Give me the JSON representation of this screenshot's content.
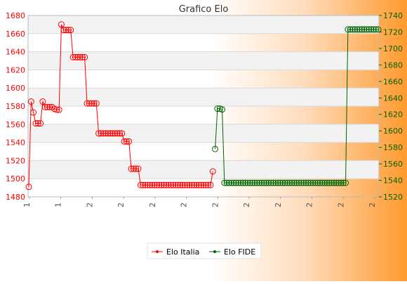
{
  "colors": {
    "italia": "#ff0000",
    "fide": "#006400",
    "band": "#f2f2f2",
    "grid": "#d9d9d9"
  },
  "chart_data": {
    "type": "line",
    "title": "Grafico Elo",
    "x_tick_labels": [
      "1",
      "1",
      "2",
      "2",
      "2",
      "2",
      "2",
      "2",
      "2",
      "2",
      "2",
      "2"
    ],
    "y_left": {
      "range": [
        1480,
        1680
      ],
      "ticks": [
        "1480",
        "1500",
        "1520",
        "1540",
        "1560",
        "1580",
        "1600",
        "1620",
        "1640",
        "1660",
        "1680"
      ]
    },
    "y_right": {
      "range": [
        1520,
        1740
      ],
      "ticks": [
        "1520",
        "1540",
        "1560",
        "1580",
        "1600",
        "1620",
        "1640",
        "1660",
        "1680",
        "1700",
        "1720",
        "1740"
      ]
    },
    "grid": "horizontal, alternating bands",
    "legend_placement": "bottom-center",
    "series": [
      {
        "name": "Elo Italia",
        "axis": "left",
        "x": [
          0,
          1,
          2,
          3,
          4,
          5,
          6,
          7,
          8,
          9,
          10,
          11,
          12,
          13,
          14,
          15,
          16,
          17,
          18,
          19,
          20,
          21,
          22,
          23,
          24,
          25,
          26,
          27,
          28,
          29,
          30,
          31,
          32,
          33,
          34,
          35,
          36,
          37,
          38,
          39,
          40,
          41,
          42,
          43,
          44,
          45,
          46,
          47,
          48,
          49,
          50,
          51,
          52,
          53,
          54,
          55,
          56,
          57,
          58,
          59,
          60,
          61,
          62,
          63,
          64,
          65,
          66,
          67,
          68,
          69,
          70,
          71,
          72,
          73,
          74,
          75,
          76,
          77,
          78,
          79
        ],
        "values": [
          1491,
          1585,
          1573,
          1561,
          1561,
          1561,
          1585,
          1579,
          1579,
          1579,
          1579,
          1577,
          1576,
          1576,
          1670,
          1664,
          1664,
          1664,
          1664,
          1634,
          1634,
          1634,
          1634,
          1634,
          1634,
          1583,
          1583,
          1583,
          1583,
          1583,
          1550,
          1550,
          1550,
          1550,
          1550,
          1550,
          1550,
          1550,
          1550,
          1550,
          1550,
          1541,
          1541,
          1541,
          1511,
          1511,
          1511,
          1511,
          1493,
          1493,
          1493,
          1493,
          1493,
          1493,
          1493,
          1493,
          1493,
          1493,
          1493,
          1493,
          1493,
          1493,
          1493,
          1493,
          1493,
          1493,
          1493,
          1493,
          1493,
          1493,
          1493,
          1493,
          1493,
          1493,
          1493,
          1493,
          1493,
          1493,
          1493,
          1508
        ]
      },
      {
        "name": "Elo FIDE",
        "axis": "right",
        "x": [
          80,
          81,
          82,
          83,
          84,
          85,
          86,
          87,
          88,
          89,
          90,
          91,
          92,
          93,
          94,
          95,
          96,
          97,
          98,
          99,
          100,
          101,
          102,
          103,
          104,
          105,
          106,
          107,
          108,
          109,
          110,
          111,
          112,
          113,
          114,
          115,
          116,
          117,
          118,
          119,
          120,
          121,
          122,
          123,
          124,
          125,
          126,
          127,
          128,
          129,
          130,
          131,
          132,
          133,
          134,
          135,
          136,
          137,
          138,
          139,
          140,
          141,
          142,
          143,
          144,
          145,
          146,
          147,
          148,
          149,
          150
        ],
        "values": [
          1578,
          1627,
          1627,
          1626,
          1537,
          1537,
          1537,
          1537,
          1537,
          1537,
          1537,
          1537,
          1537,
          1537,
          1537,
          1537,
          1537,
          1537,
          1537,
          1537,
          1537,
          1537,
          1537,
          1537,
          1537,
          1537,
          1537,
          1537,
          1537,
          1537,
          1537,
          1537,
          1537,
          1537,
          1537,
          1537,
          1537,
          1537,
          1537,
          1537,
          1537,
          1537,
          1537,
          1537,
          1537,
          1537,
          1537,
          1537,
          1537,
          1537,
          1537,
          1537,
          1537,
          1537,
          1537,
          1537,
          1537,
          1723,
          1723,
          1723,
          1723,
          1723,
          1723,
          1723,
          1723,
          1723,
          1723,
          1723,
          1723,
          1723,
          1723
        ]
      }
    ]
  }
}
